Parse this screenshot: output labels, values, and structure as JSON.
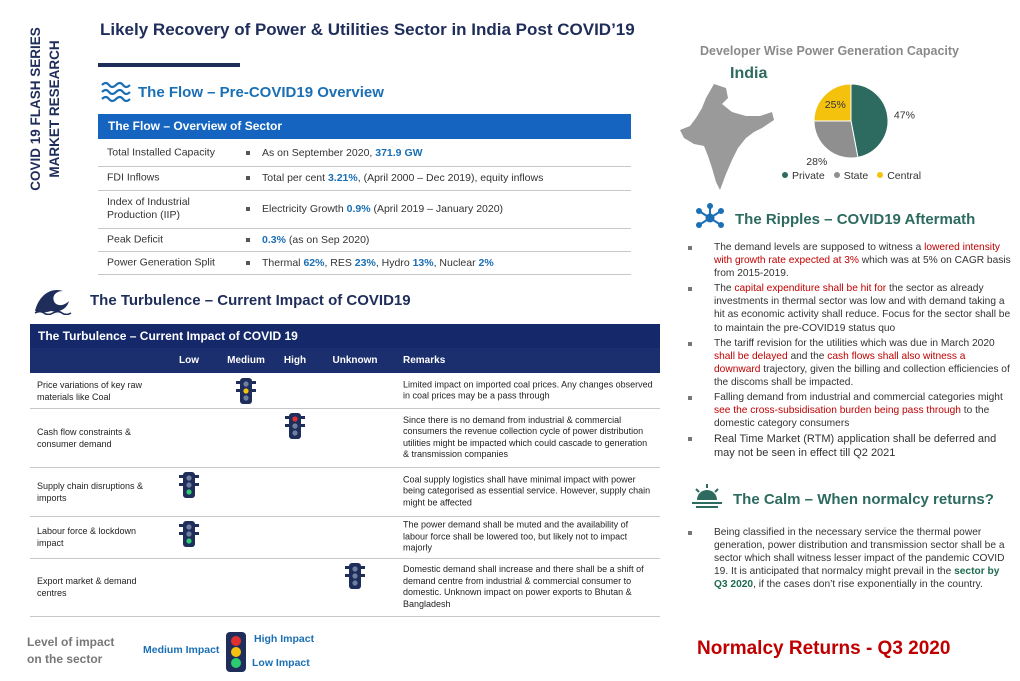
{
  "side_title": [
    "COVID 19 FLASH SERIES",
    "MARKET RESEARCH"
  ],
  "header": {
    "title": "Likely Recovery of Power & Utilities Sector in India Post COVID’19"
  },
  "flow": {
    "heading": "The Flow – Pre-COVID19 Overview",
    "table_title": "The Flow – Overview of Sector",
    "rows": [
      {
        "label": "Total Installed Capacity",
        "value": [
          "As on  September 2020, ",
          {
            "b": "371.9 GW"
          }
        ]
      },
      {
        "label": "FDI Inflows",
        "value": [
          "Total per cent ",
          {
            "b": "3.21%"
          },
          ", (April 2000 – Dec 2019), equity inflows"
        ]
      },
      {
        "label": "Index of Industrial Production (IIP)",
        "value": [
          "Electricity Growth ",
          {
            "b": "0.9%"
          },
          " (April 2019 – January 2020)"
        ]
      },
      {
        "label": "Peak Deficit",
        "value": [
          {
            "b": "0.3%"
          },
          " (as on Sep 2020)"
        ]
      },
      {
        "label": "Power Generation Split",
        "value": [
          "Thermal ",
          {
            "b": "62%"
          },
          ", RES ",
          {
            "b": "23%"
          },
          ", Hydro ",
          {
            "b": "13%"
          },
          ", Nuclear ",
          {
            "b": "2%"
          }
        ]
      }
    ]
  },
  "turbulence": {
    "heading": "The Turbulence – Current Impact of COVID19",
    "table_title": "The Turbulence – Current Impact of COVID 19",
    "columns": [
      "Low",
      "Medium",
      "High",
      "Unknown",
      "Remarks"
    ],
    "rows": [
      {
        "factor": "Price variations of key raw materials like Coal",
        "level": "Medium",
        "remarks": "Limited impact on imported coal prices. Any changes observed in coal prices may be a pass through"
      },
      {
        "factor": "Cash flow constraints & consumer demand",
        "level": "High",
        "remarks": "Since there is no demand from industrial & commercial consumers the revenue collection cycle of power distribution utilities might be impacted which could cascade to generation & transmission companies"
      },
      {
        "factor": "Supply chain disruptions & imports",
        "level": "Low",
        "remarks": "Coal supply logistics shall have minimal impact with power being categorised as essential service. However, supply chain might be affected"
      },
      {
        "factor": "Labour force & lockdown impact",
        "level": "Low",
        "remarks": "The power demand shall be muted and the availability of labour force shall be lowered too, but likely not to impact majorly"
      },
      {
        "factor": "Export market & demand centres",
        "level": "Unknown",
        "remarks": "Domestic demand shall increase and there shall be a shift of demand centre from industrial & commercial consumer to domestic. Unknown impact on power exports to Bhutan & Bangladesh"
      }
    ]
  },
  "impact_legend": {
    "title": "Level of impact on the sector",
    "medium": "Medium Impact",
    "high": "High Impact",
    "low": "Low  Impact"
  },
  "chart_data": {
    "type": "pie",
    "title": "Developer Wise Power Generation Capacity",
    "subtitle": "India",
    "categories": [
      "Private",
      "State",
      "Central"
    ],
    "values": [
      47,
      28,
      25
    ],
    "value_labels": [
      "47%",
      "28%",
      "25%"
    ],
    "colors": [
      "#2d6a5f",
      "#8f8f8f",
      "#f4c20d"
    ],
    "legend": "bottom"
  },
  "ripples": {
    "heading": "The Ripples – COVID19 Aftermath",
    "bullets": [
      [
        "The demand levels are supposed to witness a ",
        {
          "r": "lowered intensity with growth rate expected at 3%"
        },
        " which was at 5% on CAGR basis from 2015-2019."
      ],
      [
        "The ",
        {
          "r": "capital expenditure shall be hit for"
        },
        " the sector as already investments in thermal sector was low and with demand taking a hit as economic activity shall reduce. Focus for the sector shall be to maintain the pre-COVID19 status quo"
      ],
      [
        "The tariff revision for the utilities which was due in March 2020 ",
        {
          "r": "shall be delayed"
        },
        " and the ",
        {
          "r": "cash flows shall also witness a downward"
        },
        " trajectory, given the billing and collection efficiencies of the discoms shall be impacted."
      ],
      [
        "Falling demand from industrial and commercial categories might ",
        {
          "r": "see the cross-subsidisation burden being pass through"
        },
        " to the domestic category consumers"
      ],
      [
        "Real Time Market (RTM) application shall be deferred and may not be seen in effect till Q2 2021"
      ]
    ]
  },
  "calm": {
    "heading": "The Calm – When normalcy returns?",
    "bullets": [
      [
        "Being classified in the necessary service the thermal power generation, power distribution and transmission sector shall be a sector which shall witness lesser impact of the pandemic COVID 19. It is anticipated that normalcy might prevail in the ",
        {
          "g": "sector by Q3 2020"
        },
        ", if the cases don’t rise exponentially in the country."
      ]
    ]
  },
  "footer": "Normalcy Returns -  Q3 2020"
}
